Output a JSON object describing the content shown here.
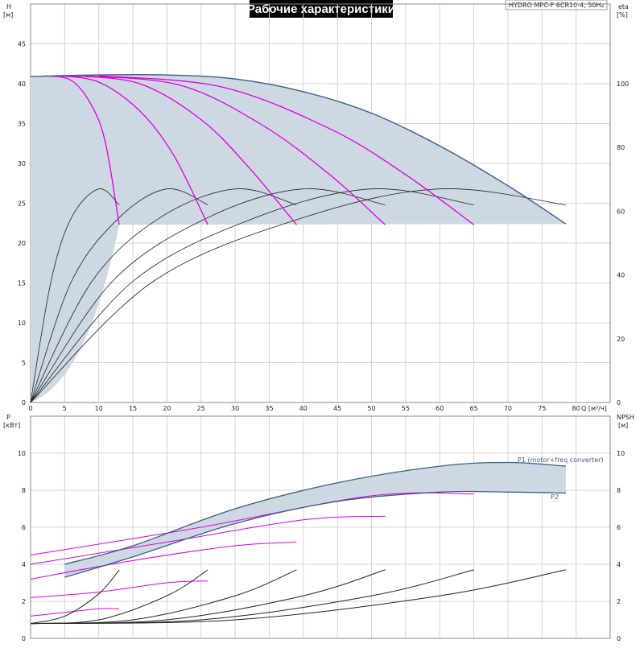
{
  "header": {
    "title": "Рабочие характеристики",
    "model": "HYDRO MPC-F 6CR10-4, 50Hz"
  },
  "colors": {
    "envelope": "#cdd8e3",
    "max_curve": "#3a5f86",
    "speed_curve": "#e000e0",
    "efficiency_curve": "#222222"
  },
  "top_chart": {
    "ylabel_left": "H",
    "unit_left": "[м]",
    "ylabel_right": "eta",
    "unit_right": "[%]",
    "xlabel": "Q [м³/ч]",
    "x_ticks": [
      "0",
      "5",
      "10",
      "15",
      "20",
      "25",
      "30",
      "35",
      "40",
      "45",
      "50",
      "55",
      "60",
      "65",
      "70",
      "75",
      "80"
    ],
    "y_ticks_left": [
      "0",
      "5",
      "10",
      "15",
      "20",
      "25",
      "30",
      "35",
      "40",
      "45"
    ],
    "y_ticks_right": [
      "0",
      "20",
      "40",
      "60",
      "80",
      "100"
    ]
  },
  "bottom_chart": {
    "ylabel_left": "P",
    "unit_left": "[кВт]",
    "ylabel_right": "NPSH",
    "unit_right": "[м]",
    "y_ticks_left": [
      "0",
      "2",
      "4",
      "6",
      "8",
      "10"
    ],
    "y_ticks_right": [
      "0",
      "2",
      "4",
      "6",
      "8",
      "10"
    ],
    "label_p1": "P1 (motor+freq converter)",
    "label_p2": "P2"
  },
  "chart_data": [
    {
      "type": "line",
      "name": "head",
      "xlim": [
        0,
        85
      ],
      "ylim": [
        0,
        50
      ],
      "envelope_upper": [
        [
          0,
          40.9
        ],
        [
          10,
          41.1
        ],
        [
          20,
          41.1
        ],
        [
          30,
          40.6
        ],
        [
          40,
          39
        ],
        [
          50,
          36.3
        ],
        [
          60,
          32.2
        ],
        [
          70,
          27.2
        ],
        [
          78.5,
          22.4
        ]
      ],
      "max_speed_curve": [
        [
          0,
          40.9
        ],
        [
          10,
          41.1
        ],
        [
          20,
          41.1
        ],
        [
          30,
          40.6
        ],
        [
          40,
          39
        ],
        [
          50,
          36.3
        ],
        [
          60,
          32.2
        ],
        [
          70,
          27.2
        ],
        [
          78.5,
          22.4
        ]
      ],
      "speed_curves": [
        [
          [
            2,
            41
          ],
          [
            6,
            40.4
          ],
          [
            9,
            37.2
          ],
          [
            11,
            32.5
          ],
          [
            13,
            22.3
          ]
        ],
        [
          [
            4,
            41
          ],
          [
            10,
            40.2
          ],
          [
            16,
            36.6
          ],
          [
            21,
            31
          ],
          [
            26,
            22.3
          ]
        ],
        [
          [
            6,
            41
          ],
          [
            16,
            40
          ],
          [
            25,
            35.5
          ],
          [
            32,
            29.5
          ],
          [
            39,
            22.3
          ]
        ],
        [
          [
            8,
            41
          ],
          [
            22,
            39.8
          ],
          [
            34,
            34.8
          ],
          [
            44,
            28.5
          ],
          [
            52,
            22.3
          ]
        ],
        [
          [
            10,
            41
          ],
          [
            28,
            39.6
          ],
          [
            44,
            34.3
          ],
          [
            55,
            28.6
          ],
          [
            65,
            22.3
          ]
        ]
      ],
      "eta_axis": [
        0,
        125
      ],
      "efficiency_curves": [
        [
          [
            0,
            0
          ],
          [
            3,
            38
          ],
          [
            6,
            58
          ],
          [
            10,
            67
          ],
          [
            13,
            62
          ]
        ],
        [
          [
            0,
            0
          ],
          [
            6,
            38
          ],
          [
            13,
            58
          ],
          [
            20,
            67
          ],
          [
            26,
            62
          ]
        ],
        [
          [
            0,
            0
          ],
          [
            9,
            38
          ],
          [
            19,
            58
          ],
          [
            30,
            67
          ],
          [
            39,
            62
          ]
        ],
        [
          [
            0,
            0
          ],
          [
            12,
            38
          ],
          [
            26,
            58
          ],
          [
            40,
            67
          ],
          [
            52,
            62
          ]
        ],
        [
          [
            0,
            0
          ],
          [
            15,
            38
          ],
          [
            33,
            58
          ],
          [
            50,
            67
          ],
          [
            65,
            62
          ]
        ],
        [
          [
            0,
            0
          ],
          [
            18,
            38
          ],
          [
            40,
            58
          ],
          [
            60,
            67
          ],
          [
            78.5,
            62
          ]
        ]
      ]
    },
    {
      "type": "line",
      "name": "power",
      "xlim": [
        0,
        85
      ],
      "ylim": [
        0,
        12
      ],
      "series": [
        {
          "name": "P1 (motor+freq converter)",
          "points": [
            [
              5,
              4
            ],
            [
              15,
              5
            ],
            [
              30,
              7
            ],
            [
              45,
              8.4
            ],
            [
              60,
              9.3
            ],
            [
              70,
              9.5
            ],
            [
              78.5,
              9.3
            ]
          ]
        },
        {
          "name": "P2",
          "points": [
            [
              5,
              3.3
            ],
            [
              15,
              4.4
            ],
            [
              30,
              6.2
            ],
            [
              45,
              7.4
            ],
            [
              60,
              7.9
            ],
            [
              70,
              7.9
            ],
            [
              78.5,
              7.85
            ]
          ]
        }
      ],
      "speed_power_curves": [
        [
          [
            0,
            1.2
          ],
          [
            5,
            1.4
          ],
          [
            10,
            1.6
          ],
          [
            13,
            1.6
          ]
        ],
        [
          [
            0,
            2.2
          ],
          [
            10,
            2.5
          ],
          [
            20,
            3.0
          ],
          [
            26,
            3.1
          ]
        ],
        [
          [
            0,
            3.2
          ],
          [
            15,
            4.2
          ],
          [
            30,
            5.0
          ],
          [
            39,
            5.2
          ]
        ],
        [
          [
            0,
            4.0
          ],
          [
            20,
            5.2
          ],
          [
            40,
            6.4
          ],
          [
            52,
            6.6
          ]
        ],
        [
          [
            0,
            4.5
          ],
          [
            25,
            6.0
          ],
          [
            50,
            7.7
          ],
          [
            65,
            7.8
          ]
        ]
      ],
      "npsh_curves": [
        [
          [
            0,
            0.8
          ],
          [
            5,
            1.2
          ],
          [
            10,
            2.4
          ],
          [
            13,
            3.7
          ]
        ],
        [
          [
            0,
            0.8
          ],
          [
            10,
            1.0
          ],
          [
            20,
            2.3
          ],
          [
            26,
            3.7
          ]
        ],
        [
          [
            0,
            0.8
          ],
          [
            15,
            1.0
          ],
          [
            30,
            2.3
          ],
          [
            39,
            3.7
          ]
        ],
        [
          [
            0,
            0.8
          ],
          [
            20,
            1.0
          ],
          [
            40,
            2.3
          ],
          [
            52,
            3.7
          ]
        ],
        [
          [
            0,
            0.8
          ],
          [
            25,
            1.0
          ],
          [
            50,
            2.3
          ],
          [
            65,
            3.7
          ]
        ],
        [
          [
            0,
            0.8
          ],
          [
            30,
            1.0
          ],
          [
            60,
            2.3
          ],
          [
            78.5,
            3.7
          ]
        ]
      ]
    }
  ]
}
